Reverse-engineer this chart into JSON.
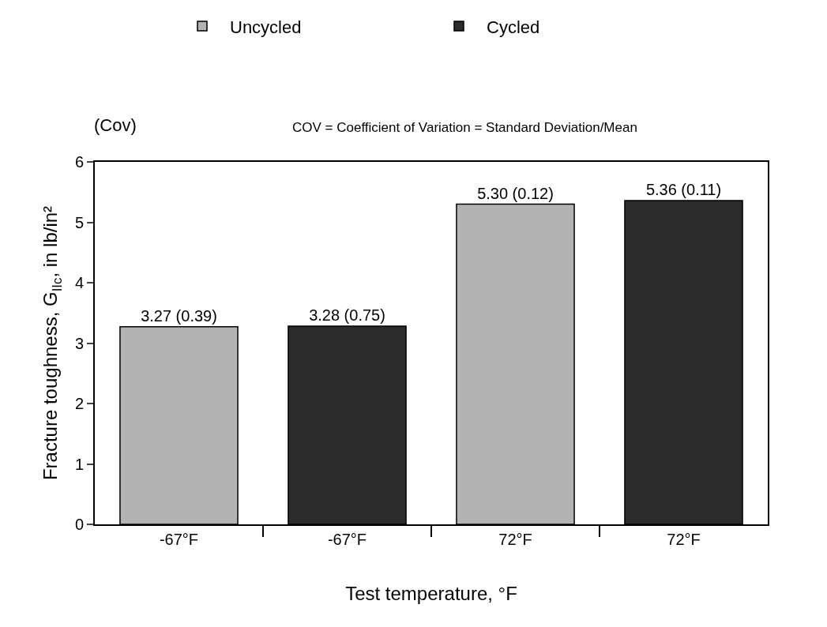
{
  "chart_data": {
    "type": "bar",
    "categories": [
      "-67°F",
      "-67°F",
      "72°F",
      "72°F"
    ],
    "xlabel": "Test temperature, °F",
    "ylabel": "Fracture toughness, G$_{IIc}$, in lb/in²",
    "ylim": [
      0,
      6
    ],
    "yticks": [
      0,
      1,
      2,
      3,
      4,
      5,
      6
    ],
    "grid": false,
    "legend": "top",
    "series": [
      {
        "name": "Uncycled",
        "color": "#b3b3b3",
        "values": [
          3.27,
          null,
          5.3,
          null
        ],
        "value_labels": [
          "3.27 (0.39)",
          null,
          "5.30 (0.12)",
          null
        ]
      },
      {
        "name": "Cycled",
        "color": "#2b2b2b",
        "values": [
          null,
          3.28,
          null,
          5.36
        ],
        "value_labels": [
          null,
          "3.28 (0.75)",
          null,
          "5.36 (0.11)"
        ]
      }
    ],
    "annotations": [
      "(Cov)",
      "COV = Coefficient of Variation = Standard Deviation/Mean"
    ]
  }
}
